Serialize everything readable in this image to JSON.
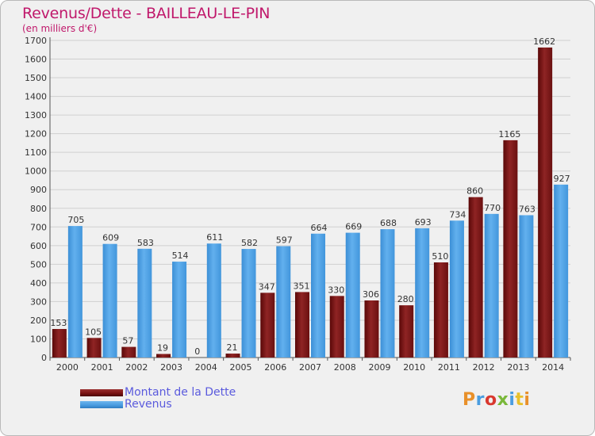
{
  "title": "Revenus/Dette - BAILLEAU-LE-PIN",
  "subtitle": "(en milliers d'€)",
  "logo": "Proxiti",
  "colors": {
    "dette": "#7a1414",
    "revenus": "#4a9de0",
    "title": "#c0186b",
    "legend_text": "#5a5add",
    "grid": "#cfcfcf"
  },
  "legend": {
    "dette_label": "Montant de la Dette",
    "revenus_label": "Revenus"
  },
  "chart_data": {
    "type": "bar",
    "title": "Revenus/Dette - BAILLEAU-LE-PIN",
    "subtitle": "(en milliers d'€)",
    "xlabel": "",
    "ylabel": "",
    "ylim": [
      0,
      1700
    ],
    "yticks": [
      0,
      100,
      200,
      300,
      400,
      500,
      600,
      700,
      800,
      900,
      1000,
      1100,
      1200,
      1300,
      1400,
      1500,
      1600,
      1700
    ],
    "grid": true,
    "categories": [
      "2000",
      "2001",
      "2002",
      "2003",
      "2004",
      "2005",
      "2006",
      "2007",
      "2008",
      "2009",
      "2010",
      "2011",
      "2012",
      "2013",
      "2014"
    ],
    "series": [
      {
        "name": "Montant de la Dette",
        "color": "#7a1414",
        "values": [
          153,
          105,
          57,
          19,
          0,
          21,
          347,
          351,
          330,
          306,
          280,
          510,
          860,
          1165,
          1662
        ]
      },
      {
        "name": "Revenus",
        "color": "#4a9de0",
        "values": [
          705,
          609,
          583,
          514,
          611,
          582,
          597,
          664,
          669,
          688,
          693,
          734,
          770,
          763,
          927
        ]
      }
    ]
  }
}
